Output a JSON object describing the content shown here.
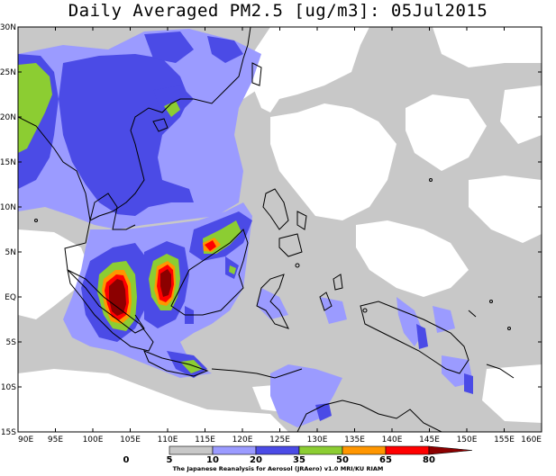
{
  "title": "Daily Averaged PM2.5 [ug/m3]: 05Jul2015",
  "credit": "The Japanese Reanalysis for Aerosol (JRAero) v1.0 MRI/KU RIAM",
  "lat_labels": [
    "30N",
    "25N",
    "20N",
    "15N",
    "10N",
    "5N",
    "EQ",
    "5S",
    "10S",
    "15S"
  ],
  "lon_labels": [
    "90E",
    "95E",
    "100E",
    "105E",
    "110E",
    "115E",
    "120E",
    "125E",
    "130E",
    "135E",
    "140E",
    "145E",
    "150E",
    "155E",
    "160E"
  ],
  "colorbar": {
    "levels": [
      "0",
      "5",
      "10",
      "20",
      "35",
      "50",
      "65",
      "80"
    ],
    "colors": [
      "#ffffff",
      "#ffffff",
      "#c8c8c8",
      "#9b9bff",
      "#4b4be6",
      "#8ccd32",
      "#ff9600",
      "#ff0000",
      "#8c0000"
    ]
  },
  "colors": {
    "land_outline": "#000000",
    "light_gray": "#c8c8c8",
    "light_blue": "#9b9bff",
    "blue": "#4b4be6",
    "green": "#8ccd32",
    "orange": "#ff9600",
    "red": "#ff0000",
    "dark_red": "#8c0000"
  }
}
